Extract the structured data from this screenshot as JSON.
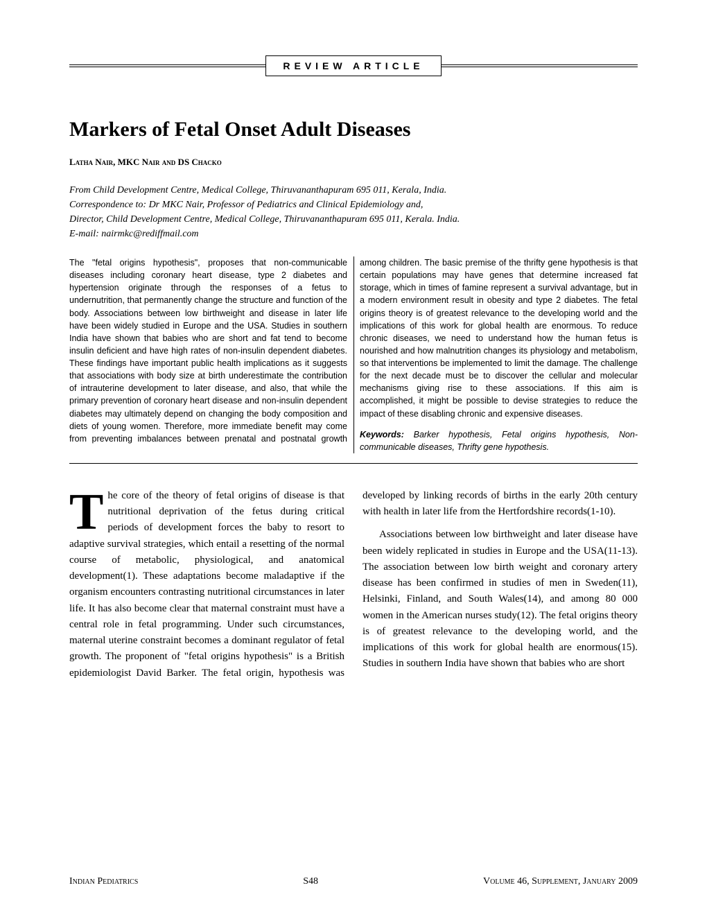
{
  "section_label": "REVIEW ARTICLE",
  "title": "Markers of Fetal Onset Adult Diseases",
  "authors": "Latha Nair, MKC Nair and DS Chacko",
  "affiliation_lines": [
    "From Child Development Centre, Medical College, Thiruvananthapuram 695 011, Kerala, India.",
    "Correspondence to: Dr MKC Nair, Professor of Pediatrics and Clinical Epidemiology and,",
    "Director, Child Development Centre, Medical College, Thiruvananthapuram 695 011, Kerala. India.",
    "E-mail: nairmkc@rediffmail.com"
  ],
  "abstract": "The \"fetal origins hypothesis\", proposes that non-communicable diseases including coronary heart disease, type 2 diabetes and hypertension originate through the responses of a fetus to undernutrition, that permanently change the structure and function of the body. Associations between low birthweight and disease in later life have been widely studied in Europe and the USA. Studies in southern India have shown that babies who are short and fat tend to become insulin deficient and have high rates of non-insulin dependent diabetes. These findings have important public health implications as it suggests that associations with body size at birth underestimate the contribution of intrauterine development to later disease, and also, that while the primary prevention of coronary heart disease and non-insulin dependent diabetes may ultimately depend on changing the body composition and diets of young women. Therefore, more immediate benefit may come from preventing imbalances between prenatal and postnatal growth among children. The basic premise of the thrifty gene hypothesis is that certain populations may have genes that determine increased fat storage, which in times of famine represent a survival advantage, but in a modern environment result in obesity and type 2 diabetes. The fetal origins theory is of greatest relevance to the developing world and the implications of this work for global health are enormous. To reduce chronic diseases, we need to understand how the human fetus is nourished and how malnutrition changes its physiology and metabolism, so that interventions be implemented to limit the damage. The challenge for the next decade must be to discover the cellular and molecular mechanisms giving rise to these associations. If this aim is accomplished, it might be possible to devise strategies to reduce the impact of these disabling chronic and expensive diseases.",
  "keywords_label": "Keywords",
  "keywords": "Barker hypothesis, Fetal origins hypothesis, Non-communicable diseases, Thrifty gene hypothesis.",
  "body_dropcap": "T",
  "body_p1": "he core of the theory of fetal origins of disease is that nutritional deprivation of the fetus during critical periods of development forces the baby to resort to adaptive survival strategies, which entail a resetting of the normal course of metabolic, physiological, and anatomical development(1). These adaptations become maladaptive if the organism encounters contrasting nutritional circumstances in later life. It has also become clear that maternal constraint must have a central role in fetal programming. Under such circumstances, maternal uterine constraint becomes a dominant regulator of fetal growth. The proponent of \"fetal origins hypothesis\" is a British epidemiologist David Barker. The fetal origin, hypothesis was developed by linking records of births in the early 20th century with health in later life from the Hertfordshire records(1-10).",
  "body_p2": "Associations between low birthweight and later disease have been widely replicated in studies in Europe and the USA(11-13). The association between low birth weight and coronary artery disease has been confirmed in studies of men in Sweden(11), Helsinki, Finland, and South Wales(14), and among 80 000 women in the American nurses study(12). The fetal origins theory is of greatest relevance to the developing world, and the implications of this work for global health are enormous(15). Studies in southern India have shown that babies who are short",
  "footer_left": "Indian  Pediatrics",
  "footer_center": "S48",
  "footer_right": "Volume 46, Supplement, January 2009"
}
